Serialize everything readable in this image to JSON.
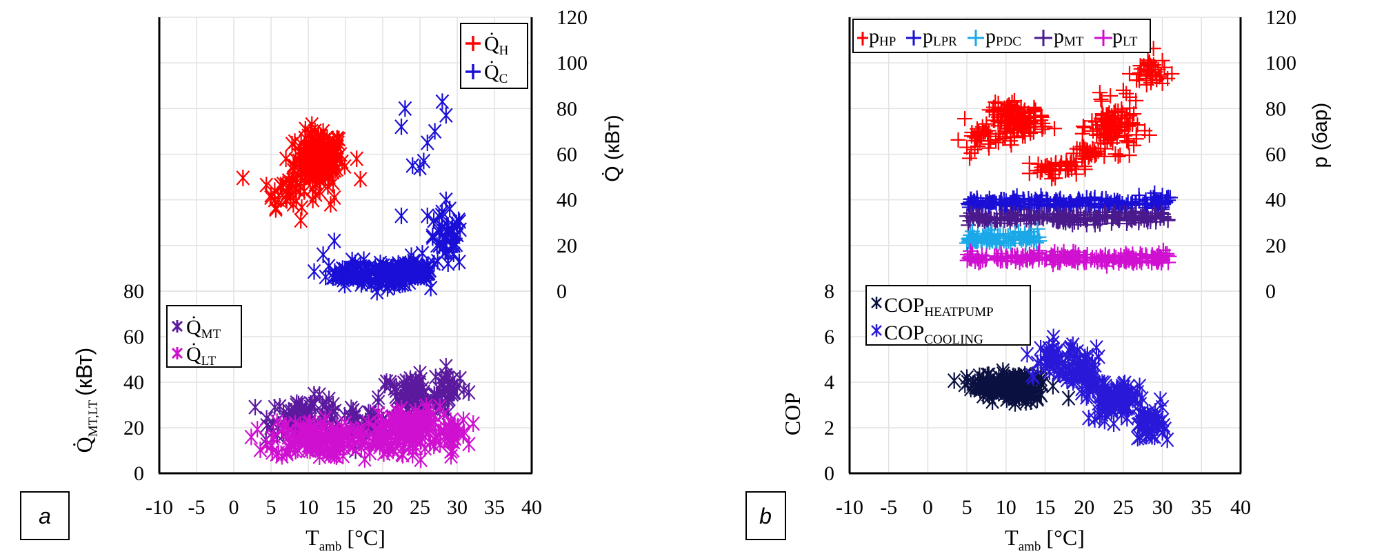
{
  "chart_data": [
    {
      "panel": "a",
      "type": "scatter",
      "xlabel": "T_amb [°C]",
      "xlabel_main": "T",
      "xlabel_sub": "amb",
      "xlabel_unit": "[°C]",
      "xlim": [
        -10,
        40
      ],
      "xticks": [
        "-10",
        "-5",
        "0",
        "5",
        "10",
        "15",
        "20",
        "25",
        "30",
        "35",
        "40"
      ],
      "grid": true,
      "right_axis": {
        "label": "Q̇ (кВт)",
        "ylim": [
          0,
          120
        ],
        "ticks": [
          "0",
          "20",
          "40",
          "60",
          "80",
          "100",
          "120"
        ]
      },
      "left_axis": {
        "label_main": "Q̇",
        "label_sub": "MT,LT",
        "label_unit": "(кВт)",
        "ylim": [
          0,
          80
        ],
        "ticks": [
          "0",
          "20",
          "40",
          "60",
          "80"
        ]
      },
      "legends": [
        {
          "placement": "top-right",
          "entries": [
            {
              "main": "Q̇",
              "sub": "H",
              "marker": "plus",
              "color": "#ff0000"
            },
            {
              "main": "Q̇",
              "sub": "C",
              "marker": "plus",
              "color": "#1a0fd6"
            }
          ]
        },
        {
          "placement": "middle-left",
          "entries": [
            {
              "main": "Q̇",
              "sub": "MT",
              "marker": "star",
              "color": "#5b1a9e"
            },
            {
              "main": "Q̇",
              "sub": "LT",
              "marker": "star",
              "color": "#d010d0"
            }
          ]
        }
      ],
      "series": [
        {
          "name": "Q_H",
          "axis": "right",
          "marker": "x",
          "color": "#ff0000",
          "clusters": [
            {
              "x": 11.5,
              "y": 58,
              "sx": 1.6,
              "sy": 6,
              "n": 160
            },
            {
              "x": 7.5,
              "y": 45,
              "sx": 1.8,
              "sy": 4,
              "n": 30
            }
          ],
          "points": [
            [
              5,
              42
            ],
            [
              6,
              40
            ],
            [
              5.5,
              44
            ],
            [
              7,
              40
            ],
            [
              8,
              38
            ],
            [
              9,
              31
            ],
            [
              13,
              38
            ],
            [
              13.5,
              41
            ],
            [
              16.5,
              58
            ],
            [
              17,
              49
            ],
            [
              7,
              58
            ],
            [
              8,
              55
            ],
            [
              10,
              68
            ],
            [
              12,
              70
            ],
            [
              14,
              65
            ]
          ]
        },
        {
          "name": "Q_C",
          "axis": "right",
          "marker": "x",
          "color": "#1a0fd6",
          "clusters": [
            {
              "x": 16,
              "y": 8,
              "sx": 1.8,
              "sy": 2.5,
              "n": 60
            },
            {
              "x": 21.5,
              "y": 7,
              "sx": 2.2,
              "sy": 2.2,
              "n": 80
            },
            {
              "x": 24.5,
              "y": 9,
              "sx": 1.5,
              "sy": 2,
              "n": 60
            },
            {
              "x": 28.5,
              "y": 22,
              "sx": 1.2,
              "sy": 6,
              "n": 40
            }
          ],
          "points": [
            [
              13.5,
              22
            ],
            [
              12,
              16
            ],
            [
              22.5,
              33
            ],
            [
              23,
              80
            ],
            [
              22.5,
              72
            ],
            [
              24,
              55
            ],
            [
              25,
              54
            ],
            [
              25.5,
              57
            ],
            [
              26,
              65
            ],
            [
              27,
              70
            ],
            [
              28,
              83
            ],
            [
              28.5,
              77
            ],
            [
              26,
              33
            ],
            [
              28.5,
              40
            ],
            [
              29,
              36
            ]
          ]
        },
        {
          "name": "Q_MT",
          "axis": "left",
          "marker": "x",
          "color": "#5b1a9e",
          "clusters": [
            {
              "x": 10,
              "y": 25,
              "sx": 2.5,
              "sy": 4,
              "n": 80
            },
            {
              "x": 17.5,
              "y": 22,
              "sx": 2,
              "sy": 3,
              "n": 40
            },
            {
              "x": 24,
              "y": 33,
              "sx": 2.2,
              "sy": 5,
              "n": 80
            },
            {
              "x": 29,
              "y": 38,
              "sx": 1.2,
              "sy": 4,
              "n": 30
            }
          ],
          "points": [
            [
              5.5,
              29
            ],
            [
              5,
              20
            ],
            [
              21,
              40
            ],
            [
              25,
              44
            ],
            [
              28.5,
              47
            ],
            [
              30,
              38
            ]
          ]
        },
        {
          "name": "Q_LT",
          "axis": "left",
          "marker": "x",
          "color": "#d010d0",
          "clusters": [
            {
              "x": 10.5,
              "y": 15,
              "sx": 2.8,
              "sy": 4,
              "n": 140
            },
            {
              "x": 18.5,
              "y": 15,
              "sx": 2,
              "sy": 4,
              "n": 50
            },
            {
              "x": 24,
              "y": 19,
              "sx": 2.2,
              "sy": 5,
              "n": 110
            },
            {
              "x": 29,
              "y": 17,
              "sx": 1.2,
              "sy": 4,
              "n": 30
            }
          ],
          "points": [
            [
              5,
              12
            ],
            [
              6,
              9
            ],
            [
              13,
              8
            ],
            [
              24,
              8
            ],
            [
              30,
              20
            ]
          ]
        }
      ]
    },
    {
      "panel": "b",
      "type": "scatter",
      "xlabel": "T_amb [°C]",
      "xlabel_main": "T",
      "xlabel_sub": "amb",
      "xlabel_unit": "[°C]",
      "xlim": [
        -10,
        40
      ],
      "xticks": [
        "-10",
        "-5",
        "0",
        "5",
        "10",
        "15",
        "20",
        "25",
        "30",
        "35",
        "40"
      ],
      "grid": true,
      "right_axis": {
        "label": "p (бар)",
        "ylim": [
          0,
          120
        ],
        "ticks": [
          "0",
          "20",
          "40",
          "60",
          "80",
          "100",
          "120"
        ]
      },
      "left_axis": {
        "label": "COP",
        "ylim": [
          0,
          8
        ],
        "ticks": [
          "0",
          "2",
          "4",
          "6",
          "8"
        ]
      },
      "legends": [
        {
          "placement": "top-left",
          "entries": [
            {
              "main": "p",
              "sub": "HP",
              "marker": "plus",
              "color": "#ff0000"
            },
            {
              "main": "p",
              "sub": "LPR",
              "marker": "plus",
              "color": "#1a0fd6"
            },
            {
              "main": "p",
              "sub": "PDC",
              "marker": "plus",
              "color": "#1ba8e8"
            },
            {
              "main": "p",
              "sub": "MT",
              "marker": "plus",
              "color": "#4a1a8c"
            },
            {
              "main": "p",
              "sub": "LT",
              "marker": "plus",
              "color": "#d010d0"
            }
          ]
        },
        {
          "placement": "middle-left",
          "entries": [
            {
              "main": "COP",
              "sub": "HEATPUMP",
              "marker": "star",
              "color": "#0a1040"
            },
            {
              "main": "COP",
              "sub": "COOLING",
              "marker": "star",
              "color": "#2a18d8"
            }
          ]
        }
      ],
      "series": [
        {
          "name": "p_HP",
          "axis": "right",
          "marker": "plus",
          "color": "#ff0000",
          "clusters": [
            {
              "x": 11.5,
              "y": 75,
              "sx": 1.8,
              "sy": 3.5,
              "n": 140
            },
            {
              "x": 7,
              "y": 67,
              "sx": 1.3,
              "sy": 3,
              "n": 25
            },
            {
              "x": 16,
              "y": 54,
              "sx": 1.5,
              "sy": 2,
              "n": 40
            },
            {
              "x": 24,
              "y": 72,
              "sx": 1.6,
              "sy": 5,
              "n": 100
            },
            {
              "x": 20.5,
              "y": 60,
              "sx": 1.3,
              "sy": 2.5,
              "n": 30
            },
            {
              "x": 28.5,
              "y": 96,
              "sx": 1.2,
              "sy": 4,
              "n": 35
            }
          ],
          "points": [
            [
              5,
              63
            ],
            [
              6,
              62
            ],
            [
              7,
              72
            ],
            [
              14.5,
              77
            ],
            [
              15,
              72
            ],
            [
              13,
              56
            ],
            [
              18,
              53
            ],
            [
              22,
              87
            ],
            [
              25,
              88
            ],
            [
              30,
              91
            ],
            [
              30,
              101
            ]
          ]
        },
        {
          "name": "p_LPR",
          "axis": "right",
          "marker": "plus",
          "color": "#1a0fd6",
          "bands": [
            {
              "x0": 5,
              "x1": 31,
              "y": 38.5,
              "sy": 1.2,
              "n": 220
            }
          ],
          "points": [
            [
              27,
              42
            ],
            [
              28.5,
              41
            ],
            [
              30,
              42
            ],
            [
              29,
              43
            ],
            [
              31,
              41
            ]
          ]
        },
        {
          "name": "p_MT",
          "axis": "right",
          "marker": "plus",
          "color": "#4a1a8c",
          "bands": [
            {
              "x0": 5,
              "x1": 31,
              "y": 32,
              "sy": 1.2,
              "n": 220
            }
          ],
          "points": []
        },
        {
          "name": "p_PDC",
          "axis": "right",
          "marker": "plus",
          "color": "#1ba8e8",
          "bands": [
            {
              "x0": 5,
              "x1": 14.5,
              "y": 23.5,
              "sy": 1.5,
              "n": 90
            }
          ],
          "points": [
            [
              5,
              21
            ],
            [
              6,
              22
            ]
          ]
        },
        {
          "name": "p_LT",
          "axis": "right",
          "marker": "plus",
          "color": "#d010d0",
          "bands": [
            {
              "x0": 5,
              "x1": 31,
              "y": 14.5,
              "sy": 1.3,
              "n": 220
            }
          ],
          "points": []
        },
        {
          "name": "COP_HEATPUMP",
          "axis": "left",
          "marker": "x",
          "color": "#0a1040",
          "clusters": [
            {
              "x": 10,
              "y": 3.85,
              "sx": 2.2,
              "sy": 0.25,
              "n": 140
            },
            {
              "x": 12.5,
              "y": 3.6,
              "sx": 1.2,
              "sy": 0.3,
              "n": 40
            }
          ],
          "points": [
            [
              5,
              4.2
            ],
            [
              5.5,
              3.7
            ],
            [
              14,
              3.3
            ],
            [
              18,
              3.3
            ]
          ]
        },
        {
          "name": "COP_COOLING",
          "axis": "left",
          "marker": "x",
          "color": "#2a18d8",
          "clusters": [
            {
              "x": 16.5,
              "y": 5.0,
              "sx": 1.5,
              "sy": 0.35,
              "n": 50
            },
            {
              "x": 20,
              "y": 4.2,
              "sx": 1.3,
              "sy": 0.4,
              "n": 50
            },
            {
              "x": 24,
              "y": 3.2,
              "sx": 1.6,
              "sy": 0.45,
              "n": 100
            },
            {
              "x": 28,
              "y": 2.2,
              "sx": 1.1,
              "sy": 0.35,
              "n": 40
            }
          ],
          "points": [
            [
              13.5,
              4.2
            ],
            [
              15.5,
              5.5
            ],
            [
              30,
              2.9
            ],
            [
              30,
              1.8
            ],
            [
              29,
              1.6
            ]
          ]
        }
      ]
    }
  ],
  "panel_labels": {
    "a": "a",
    "b": "b"
  }
}
